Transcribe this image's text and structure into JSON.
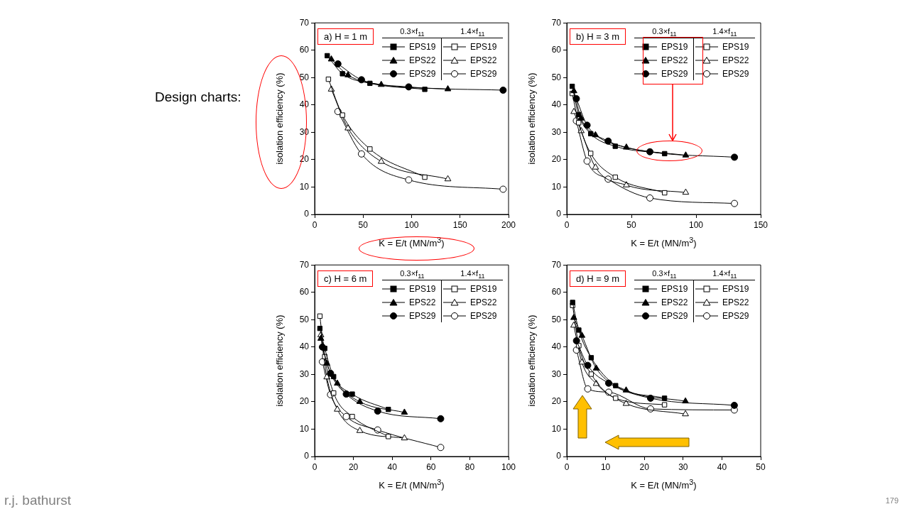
{
  "chart_data": [
    {
      "type": "line",
      "title": "a) H = 1 m",
      "xlabel": "K = E/t (MN/m$^{3}$)",
      "ylabel": "isolation efficiency (%)",
      "xlim": [
        0,
        200
      ],
      "xticks": [
        0,
        50,
        100,
        150,
        200
      ],
      "ylim": [
        0,
        70
      ],
      "yticks": [
        0,
        10,
        20,
        30,
        40,
        50,
        60,
        70
      ],
      "legend": "top right",
      "annotations": [
        "0.3×f$_{11}$",
        "1.4×f$_{11}$",
        "Design charts:",
        "r.j. bathurst",
        "179"
      ],
      "series": [
        {
          "name": "EPS19",
          "color": "#000000",
          "marker": "square",
          "x": [
            13,
            28.7,
            57,
            113.6
          ],
          "values": [
            58,
            51.4,
            47.9,
            45.7
          ]
        },
        {
          "name": "EPS22",
          "color": "#000000",
          "marker": "triangle",
          "x": [
            17.2,
            34.4,
            68.7,
            137.4
          ],
          "values": [
            56.7,
            50.9,
            47.4,
            45.8
          ]
        },
        {
          "name": "EPS29",
          "color": "#000000",
          "marker": "circle",
          "x": [
            24,
            48.3,
            97,
            194.4
          ],
          "values": [
            55,
            49.2,
            46.6,
            45.4
          ]
        },
        {
          "name": "EPS19",
          "color": "#000000",
          "marker": "square",
          "x": [
            14.2,
            28.7,
            57,
            113.6
          ],
          "values": [
            49.4,
            36.3,
            23.9,
            13.6
          ]
        },
        {
          "name": "EPS22",
          "color": "#000000",
          "marker": "triangle",
          "x": [
            17.2,
            34.4,
            68.7,
            137.4
          ],
          "values": [
            45.7,
            31.5,
            19.3,
            12.9
          ]
        },
        {
          "name": "EPS29",
          "color": "#000000",
          "marker": "circle",
          "x": [
            24,
            48.3,
            97,
            194.4
          ],
          "values": [
            37.6,
            22.1,
            12.6,
            9.2
          ]
        }
      ]
    },
    {
      "type": "line",
      "title": "b) H = 3 m",
      "xlabel": "K = E/t (MN/m$^{3}$)",
      "ylabel": "isolation efficiency (%)",
      "xlim": [
        0,
        150
      ],
      "xticks": [
        0,
        50,
        100,
        150
      ],
      "ylim": [
        0,
        70
      ],
      "yticks": [
        0,
        10,
        20,
        30,
        40,
        50,
        60,
        70
      ],
      "legend": "top right",
      "annotations": [
        "0.3×f$_{11}$",
        "1.4×f$_{11}$"
      ],
      "series": [
        {
          "name": "EPS19",
          "color": "#000000",
          "marker": "square",
          "x": [
            4.2,
            9.2,
            18.5,
            37.5,
            75.7
          ],
          "values": [
            46.8,
            36.5,
            29.5,
            24.9,
            22.2
          ]
        },
        {
          "name": "EPS22",
          "color": "#000000",
          "marker": "triangle",
          "x": [
            5.5,
            11.1,
            22.2,
            46.1,
            92
          ],
          "values": [
            45.1,
            35.1,
            29,
            24.5,
            21.6
          ]
        },
        {
          "name": "EPS29",
          "color": "#000000",
          "marker": "circle",
          "x": [
            7.4,
            15.7,
            32,
            64.3,
            129.7
          ],
          "values": [
            42.3,
            32.6,
            26.8,
            22.9,
            20.9
          ]
        },
        {
          "name": "EPS19",
          "color": "#000000",
          "marker": "square",
          "x": [
            4.2,
            9.2,
            18.5,
            37.5,
            75.7
          ],
          "values": [
            44.2,
            33.5,
            22.3,
            13.6,
            7.9
          ]
        },
        {
          "name": "EPS22",
          "color": "#000000",
          "marker": "triangle",
          "x": [
            5.5,
            11.1,
            22.2,
            46.1,
            92
          ],
          "values": [
            37.5,
            30.5,
            17.2,
            10.7,
            8
          ]
        },
        {
          "name": "EPS29",
          "color": "#000000",
          "marker": "circle",
          "x": [
            7.4,
            15.7,
            32,
            64.3,
            129.7
          ],
          "values": [
            34.2,
            19.5,
            12.9,
            6,
            4
          ]
        }
      ]
    },
    {
      "type": "line",
      "title": "c) H = 6 m",
      "xlabel": "K = E/t (MN/m$^{3}$)",
      "ylabel": "isolation efficiency (%)",
      "xlim": [
        0,
        100
      ],
      "xticks": [
        0,
        20,
        40,
        60,
        80,
        100
      ],
      "ylim": [
        0,
        70
      ],
      "yticks": [
        0,
        10,
        20,
        30,
        40,
        50,
        60,
        70
      ],
      "legend": "top right",
      "annotations": [
        "0.3×f$_{11}$",
        "1.4×f$_{11}$"
      ],
      "series": [
        {
          "name": "EPS19",
          "color": "#000000",
          "marker": "square",
          "x": [
            2.7,
            5.2,
            9.8,
            19.4,
            38
          ],
          "values": [
            46.8,
            39.5,
            29.2,
            22.8,
            17.2
          ]
        },
        {
          "name": "EPS22",
          "color": "#000000",
          "marker": "triangle",
          "x": [
            3.2,
            6.3,
            11.7,
            23.3,
            46.3
          ],
          "values": [
            43.1,
            34,
            26.7,
            20,
            16.1
          ]
        },
        {
          "name": "EPS29",
          "color": "#000000",
          "marker": "circle",
          "x": [
            4,
            8.2,
            16.3,
            32.5,
            65
          ],
          "values": [
            40,
            30.4,
            22.8,
            16.6,
            13.8
          ]
        },
        {
          "name": "EPS19",
          "color": "#000000",
          "marker": "square",
          "x": [
            2.7,
            5.2,
            9.8,
            19.4,
            38
          ],
          "values": [
            51.3,
            36.5,
            23.2,
            14.6,
            7.3
          ]
        },
        {
          "name": "EPS22",
          "color": "#000000",
          "marker": "triangle",
          "x": [
            3.2,
            6.3,
            11.7,
            23.3,
            46.3
          ],
          "values": [
            44.4,
            29,
            17.2,
            9.4,
            6.7
          ]
        },
        {
          "name": "EPS29",
          "color": "#000000",
          "marker": "circle",
          "x": [
            4,
            8.2,
            16.3,
            32.5,
            65
          ],
          "values": [
            34.6,
            22.6,
            14.6,
            9.7,
            3.3
          ]
        }
      ]
    },
    {
      "type": "line",
      "title": "d) H = 9 m",
      "xlabel": "K = E/t (MN/m$^{3}$)",
      "ylabel": "isolation efficiency (%)",
      "xlim": [
        0,
        50
      ],
      "xticks": [
        0,
        10,
        20,
        30,
        40,
        50
      ],
      "ylim": [
        0,
        70
      ],
      "yticks": [
        0,
        10,
        20,
        30,
        40,
        50,
        60,
        70
      ],
      "legend": "top right",
      "annotations": [
        "0.3×f$_{11}$",
        "1.4×f$_{11}$"
      ],
      "series": [
        {
          "name": "EPS19",
          "color": "#000000",
          "marker": "square",
          "x": [
            1.5,
            3.1,
            6.3,
            12.6,
            25.2
          ],
          "values": [
            56.3,
            46.2,
            36.1,
            25.9,
            21.3
          ]
        },
        {
          "name": "EPS22",
          "color": "#000000",
          "marker": "triangle",
          "x": [
            1.8,
            3.9,
            7.6,
            15.3,
            30.6
          ],
          "values": [
            50.7,
            44.2,
            32.2,
            24.2,
            20.2
          ]
        },
        {
          "name": "EPS29",
          "color": "#000000",
          "marker": "circle",
          "x": [
            2.5,
            5.4,
            10.8,
            21.6,
            43.2
          ],
          "values": [
            42.3,
            33.3,
            26.8,
            21.3,
            18.7
          ]
        },
        {
          "name": "EPS19",
          "color": "#000000",
          "marker": "square",
          "x": [
            1.5,
            3.1,
            6.3,
            12.6,
            25.2
          ],
          "values": [
            55.2,
            40.5,
            30.1,
            21.3,
            18.9
          ]
        },
        {
          "name": "EPS22",
          "color": "#000000",
          "marker": "triangle",
          "x": [
            1.8,
            3.9,
            7.6,
            15.3,
            30.6
          ],
          "values": [
            47.9,
            34.4,
            26.6,
            19.3,
            15.5
          ]
        },
        {
          "name": "EPS29",
          "color": "#000000",
          "marker": "circle",
          "x": [
            2.5,
            5.4,
            10.8,
            21.6,
            43.2
          ],
          "values": [
            38.9,
            24.7,
            23.5,
            17.4,
            17
          ]
        }
      ]
    }
  ]
}
